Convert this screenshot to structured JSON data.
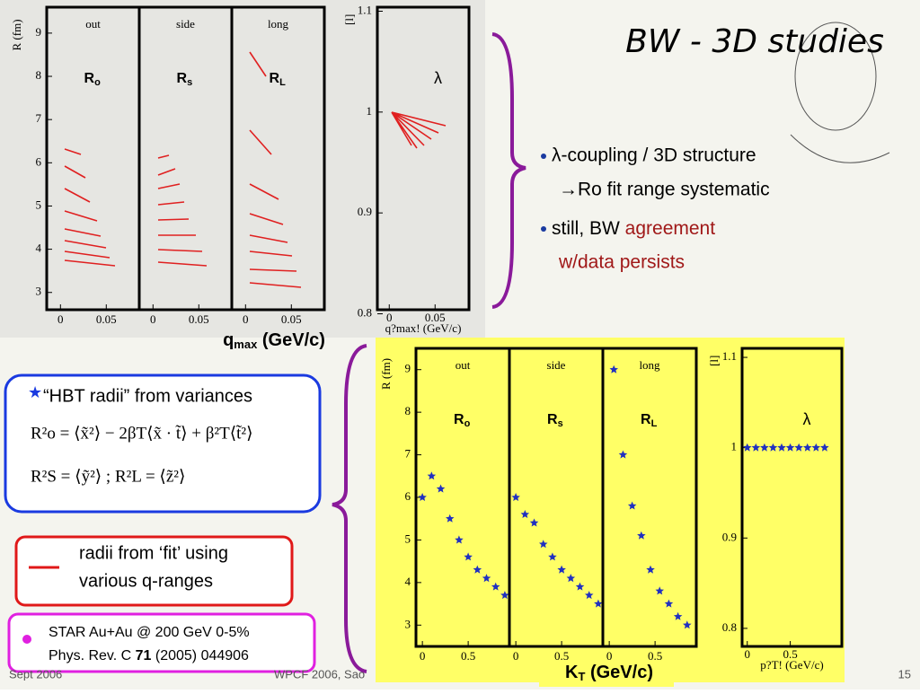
{
  "title": "BW - 3D studies",
  "bullets": [
    {
      "text": "λ-coupling / 3D structure",
      "sub": "→Ro fit range systematic"
    },
    {
      "text": "still, BW ",
      "highlight": "agreement",
      "highlight2": "w/data persists"
    }
  ],
  "top_plot": {
    "y_label": "R (fm)",
    "ylim": [
      2.6,
      9.6
    ],
    "yticks": [
      3,
      4,
      5,
      6,
      7,
      8,
      9
    ],
    "xlim": [
      -0.015,
      0.086
    ],
    "xticks": [
      0,
      0.05
    ],
    "panels": [
      {
        "name": "out",
        "label": "R",
        "sub": "o"
      },
      {
        "name": "side",
        "label": "R",
        "sub": "s"
      },
      {
        "name": "long",
        "label": "R",
        "sub": "L"
      }
    ],
    "lambda": {
      "y_label": "[l]",
      "symbol": "λ",
      "ylim": [
        0.804,
        1.104
      ],
      "yticks": [
        0.8,
        0.9,
        1,
        1.1
      ],
      "xlim": [
        -0.013,
        0.087
      ],
      "xticks": [
        0,
        0.05
      ],
      "x_label": "q?max! (GeV/c)"
    },
    "caption": {
      "main": "q",
      "sub": "max",
      "rest": " (GeV/c)"
    }
  },
  "bottom_plot": {
    "y_label": "R (fm)",
    "ylim": [
      2.5,
      9.5
    ],
    "yticks": [
      3,
      4,
      5,
      6,
      7,
      8,
      9
    ],
    "xlim": [
      -0.07,
      0.95
    ],
    "xticks": [
      0,
      0.5
    ],
    "panels": [
      {
        "name": "out",
        "label": "R",
        "sub": "o",
        "x": [
          0,
          0.1,
          0.2,
          0.3,
          0.4,
          0.5,
          0.6,
          0.7,
          0.8,
          0.9
        ],
        "values": [
          6.0,
          6.5,
          6.2,
          5.5,
          5.0,
          4.6,
          4.3,
          4.1,
          3.9,
          3.7
        ]
      },
      {
        "name": "side",
        "label": "R",
        "sub": "s",
        "x": [
          0,
          0.1,
          0.2,
          0.3,
          0.4,
          0.5,
          0.6,
          0.7,
          0.8,
          0.9
        ],
        "values": [
          6.0,
          5.6,
          5.4,
          4.9,
          4.6,
          4.3,
          4.1,
          3.9,
          3.7,
          3.5
        ]
      },
      {
        "name": "long",
        "label": "R",
        "sub": "L",
        "x": [
          0.05,
          0.15,
          0.25,
          0.35,
          0.45,
          0.55,
          0.65,
          0.75,
          0.85
        ],
        "values": [
          9.0,
          7.0,
          5.8,
          5.1,
          4.3,
          3.8,
          3.5,
          3.2,
          3.0
        ]
      }
    ],
    "lambda": {
      "y_label": "[l]",
      "symbol": "λ",
      "ylim": [
        0.78,
        1.11
      ],
      "yticks": [
        0.8,
        0.9,
        1,
        1.1
      ],
      "xlim": [
        -0.06,
        1.1
      ],
      "xticks": [
        0,
        0.5
      ],
      "x_label": "p?T! (GeV/c)",
      "x": [
        0,
        0.1,
        0.2,
        0.3,
        0.4,
        0.5,
        0.6,
        0.7,
        0.8,
        0.9
      ],
      "values": [
        1,
        1,
        1,
        1,
        1,
        1,
        1,
        1,
        1,
        1
      ]
    },
    "caption": {
      "main": "K",
      "sub": "T",
      "rest": " (GeV/c)"
    }
  },
  "hbt_box": {
    "heading": "“HBT radii” from variances",
    "formula1": "R²o = ⟨x̃²⟩ − 2βT⟨x̃ · t̃⟩ + β²T⟨t̃²⟩",
    "formula2": "R²S = ⟨ỹ²⟩   ;   R²L = ⟨z̃²⟩"
  },
  "fit_box": {
    "line1": "radii from ‘fit’ using",
    "line2": "various q-ranges"
  },
  "star_box": {
    "line1": "STAR Au+Au @ 200 GeV 0-5%",
    "line2": "Phys. Rev. C ",
    "volume": "71",
    "rest": " (2005) 044906"
  },
  "footer": {
    "date": "Sept 2006",
    "conference": "WPCF 2006, Sao",
    "page": "15"
  }
}
